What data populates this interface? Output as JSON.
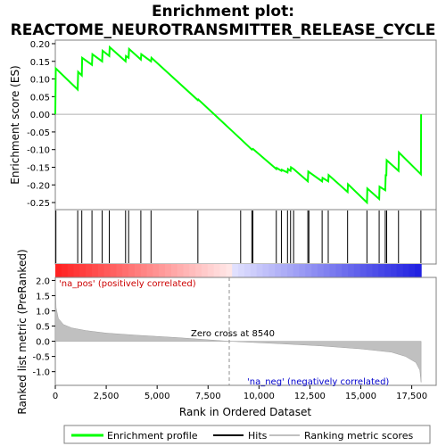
{
  "chart_data": {
    "type": "line",
    "title_line1": "Enrichment plot:",
    "title_line2": "REACTOME_NEUROTRANSMITTER_RELEASE_CYCLE",
    "top_panel": {
      "ylabel": "Enrichment score (ES)",
      "ylim": [
        -0.27,
        0.21
      ],
      "yticks": [
        "0.20",
        "0.15",
        "0.10",
        "0.05",
        "0.00",
        "-0.05",
        "-0.10",
        "-0.15",
        "-0.20",
        "-0.25"
      ],
      "ytick_values": [
        0.2,
        0.15,
        0.1,
        0.05,
        0.0,
        -0.05,
        -0.1,
        -0.15,
        -0.2,
        -0.25
      ],
      "series_name": "Enrichment profile",
      "color": "#00ff00",
      "es_profile": [
        [
          0,
          0.0
        ],
        [
          20,
          0.13
        ],
        [
          1100,
          0.07
        ],
        [
          1120,
          0.12
        ],
        [
          1300,
          0.11
        ],
        [
          1320,
          0.16
        ],
        [
          1800,
          0.14
        ],
        [
          1820,
          0.17
        ],
        [
          2300,
          0.15
        ],
        [
          2320,
          0.18
        ],
        [
          2650,
          0.165
        ],
        [
          2670,
          0.19
        ],
        [
          3450,
          0.15
        ],
        [
          3470,
          0.165
        ],
        [
          3600,
          0.16
        ],
        [
          3620,
          0.185
        ],
        [
          4200,
          0.155
        ],
        [
          4220,
          0.17
        ],
        [
          4700,
          0.15
        ],
        [
          4720,
          0.16
        ],
        [
          7000,
          0.04
        ],
        [
          7020,
          0.042
        ],
        [
          9100,
          -0.07
        ],
        [
          9650,
          -0.1
        ],
        [
          9700,
          -0.098
        ],
        [
          10850,
          -0.155
        ],
        [
          10870,
          -0.152
        ],
        [
          11100,
          -0.16
        ],
        [
          11120,
          -0.157
        ],
        [
          11400,
          -0.165
        ],
        [
          11420,
          -0.155
        ],
        [
          11550,
          -0.16
        ],
        [
          11570,
          -0.15
        ],
        [
          11700,
          -0.155
        ],
        [
          12400,
          -0.19
        ],
        [
          12420,
          -0.162
        ],
        [
          13100,
          -0.19
        ],
        [
          13120,
          -0.18
        ],
        [
          13400,
          -0.19
        ],
        [
          13420,
          -0.172
        ],
        [
          14350,
          -0.22
        ],
        [
          14370,
          -0.198
        ],
        [
          15300,
          -0.25
        ],
        [
          15320,
          -0.21
        ],
        [
          15900,
          -0.24
        ],
        [
          15920,
          -0.205
        ],
        [
          16200,
          -0.215
        ],
        [
          16220,
          -0.17
        ],
        [
          16250,
          -0.175
        ],
        [
          16270,
          -0.13
        ],
        [
          16850,
          -0.16
        ],
        [
          16870,
          -0.108
        ],
        [
          17950,
          -0.17
        ],
        [
          17960,
          0.0
        ]
      ]
    },
    "hits": [
      30,
      1100,
      1300,
      1800,
      2300,
      2650,
      3450,
      3600,
      4200,
      4700,
      7000,
      9100,
      9650,
      9700,
      10850,
      11100,
      11400,
      11550,
      11700,
      12400,
      12450,
      13100,
      13400,
      14350,
      15300,
      15900,
      16200,
      16270,
      16850,
      17950
    ],
    "bottom_panel": {
      "ylabel": "Ranked list metric (PreRanked)",
      "xlabel": "Rank in Ordered Dataset",
      "ylim": [
        -1.45,
        2.1
      ],
      "yticks": [
        "2.0",
        "1.5",
        "1.0",
        "0.5",
        "0.0",
        "-0.5",
        "-1.0"
      ],
      "ytick_values": [
        2.0,
        1.5,
        1.0,
        0.5,
        0.0,
        -0.5,
        -1.0
      ],
      "xlim": [
        0,
        18700
      ],
      "xticks": [
        "0",
        "2,500",
        "5,000",
        "7,500",
        "10,000",
        "12,500",
        "15,000",
        "17,500"
      ],
      "xtick_values": [
        0,
        2500,
        5000,
        7500,
        10000,
        12500,
        15000,
        17500
      ],
      "metric_curve": [
        [
          0,
          2.0
        ],
        [
          40,
          1.1
        ],
        [
          150,
          0.75
        ],
        [
          400,
          0.55
        ],
        [
          800,
          0.44
        ],
        [
          1500,
          0.35
        ],
        [
          2500,
          0.27
        ],
        [
          4000,
          0.2
        ],
        [
          6000,
          0.12
        ],
        [
          8540,
          0.0
        ],
        [
          11000,
          -0.08
        ],
        [
          13000,
          -0.15
        ],
        [
          15000,
          -0.25
        ],
        [
          16500,
          -0.36
        ],
        [
          17200,
          -0.5
        ],
        [
          17700,
          -0.7
        ],
        [
          17900,
          -0.95
        ],
        [
          17960,
          -1.35
        ]
      ],
      "zero_cross_label": "Zero cross at 8540",
      "zero_cross": 8540,
      "pos_label": "'na_pos' (positively correlated)",
      "neg_label": "'na_neg' (negatively correlated)",
      "n_genes": 17960
    },
    "legend": {
      "entries": [
        "Enrichment profile",
        "Hits",
        "Ranking metric scores"
      ],
      "colors": [
        "#00ff00",
        "#000000",
        "#c0c0c0"
      ]
    }
  }
}
